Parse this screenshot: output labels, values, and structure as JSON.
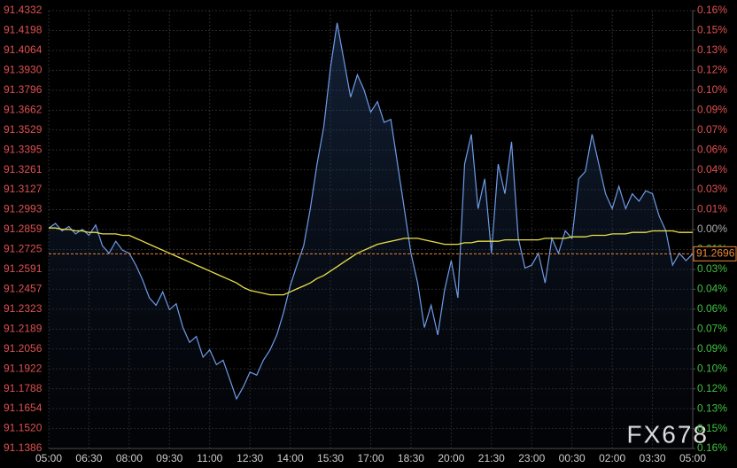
{
  "chart_data": {
    "type": "line",
    "x": [
      "05:00",
      "05:15",
      "05:30",
      "05:45",
      "06:00",
      "06:15",
      "06:30",
      "06:45",
      "07:00",
      "07:15",
      "07:30",
      "07:45",
      "08:00",
      "08:15",
      "08:30",
      "08:45",
      "09:00",
      "09:15",
      "09:30",
      "09:45",
      "10:00",
      "10:15",
      "10:30",
      "10:45",
      "11:00",
      "11:15",
      "11:30",
      "11:45",
      "12:00",
      "12:15",
      "12:30",
      "12:45",
      "13:00",
      "13:15",
      "13:30",
      "13:45",
      "14:00",
      "14:15",
      "14:30",
      "14:45",
      "15:00",
      "15:15",
      "15:30",
      "15:45",
      "16:00",
      "16:15",
      "16:30",
      "16:45",
      "17:00",
      "17:15",
      "17:30",
      "17:45",
      "18:00",
      "18:15",
      "18:30",
      "18:45",
      "19:00",
      "19:15",
      "19:30",
      "19:45",
      "20:00",
      "20:15",
      "20:30",
      "20:45",
      "21:00",
      "21:15",
      "21:30",
      "21:45",
      "22:00",
      "22:15",
      "22:30",
      "22:45",
      "23:00",
      "23:15",
      "23:30",
      "23:45",
      "00:00",
      "00:15",
      "00:30",
      "00:45",
      "01:00",
      "01:15",
      "01:30",
      "01:45",
      "02:00",
      "02:15",
      "02:30",
      "02:45",
      "03:00",
      "03:15",
      "03:30",
      "03:45",
      "04:00",
      "04:15",
      "04:30",
      "04:45",
      "05:00"
    ],
    "series": [
      {
        "color": "#6f9be8",
        "values": [
          91.287,
          91.29,
          91.285,
          91.288,
          91.283,
          91.286,
          91.282,
          91.289,
          91.275,
          91.27,
          91.278,
          91.272,
          91.27,
          91.262,
          91.252,
          91.24,
          91.235,
          91.244,
          91.232,
          91.236,
          91.22,
          91.21,
          91.214,
          91.2,
          91.205,
          91.195,
          91.198,
          91.185,
          91.172,
          91.18,
          91.19,
          91.188,
          91.198,
          91.205,
          91.215,
          91.23,
          91.248,
          91.262,
          91.275,
          91.3,
          91.33,
          91.355,
          91.395,
          91.425,
          91.4,
          91.375,
          91.39,
          91.38,
          91.365,
          91.372,
          91.358,
          91.36,
          91.33,
          91.3,
          91.27,
          91.25,
          91.22,
          91.235,
          91.215,
          91.245,
          91.265,
          91.24,
          91.33,
          91.35,
          91.3,
          91.32,
          91.27,
          91.33,
          91.31,
          91.345,
          91.28,
          91.26,
          91.262,
          91.27,
          91.25,
          91.28,
          91.27,
          91.285,
          91.28,
          91.32,
          91.325,
          91.35,
          91.33,
          91.31,
          91.3,
          91.315,
          91.3,
          91.31,
          91.305,
          91.312,
          91.31,
          91.295,
          91.285,
          91.262,
          91.27,
          91.265,
          91.2696
        ]
      },
      {
        "color": "#e8e04a",
        "values": [
          91.287,
          91.287,
          91.286,
          91.286,
          91.285,
          91.285,
          91.284,
          91.284,
          91.283,
          91.283,
          91.283,
          91.282,
          91.282,
          91.28,
          91.278,
          91.276,
          91.274,
          91.272,
          91.27,
          91.268,
          91.266,
          91.264,
          91.262,
          91.26,
          91.258,
          91.256,
          91.254,
          91.252,
          91.25,
          91.247,
          91.245,
          91.244,
          91.243,
          91.242,
          91.242,
          91.242,
          91.244,
          91.246,
          91.248,
          91.25,
          91.253,
          91.255,
          91.258,
          91.261,
          91.264,
          91.267,
          91.27,
          91.272,
          91.274,
          91.276,
          91.277,
          91.278,
          91.279,
          91.28,
          91.28,
          91.28,
          91.279,
          91.278,
          91.277,
          91.276,
          91.276,
          91.276,
          91.277,
          91.277,
          91.278,
          91.278,
          91.278,
          91.278,
          91.279,
          91.279,
          91.279,
          91.279,
          91.279,
          91.279,
          91.28,
          91.28,
          91.28,
          91.28,
          91.281,
          91.281,
          91.281,
          91.282,
          91.282,
          91.282,
          91.283,
          91.283,
          91.283,
          91.284,
          91.284,
          91.284,
          91.285,
          91.285,
          91.285,
          91.285,
          91.284,
          91.284,
          91.284
        ]
      }
    ],
    "xticks": [
      "05:00",
      "06:30",
      "08:00",
      "09:30",
      "11:00",
      "12:30",
      "14:00",
      "15:30",
      "17:00",
      "18:30",
      "20:00",
      "21:30",
      "23:00",
      "00:30",
      "02:00",
      "03:30",
      "05:00"
    ],
    "ylim": [
      91.1386,
      91.4332
    ],
    "yticks": [
      91.4332,
      91.4198,
      91.4064,
      {
        "value": 91.393,
        "label": "91.3930"
      },
      91.3796,
      91.3662,
      91.3529,
      91.3395,
      91.3261,
      91.3127,
      91.2993,
      91.2859,
      91.2725,
      91.2591,
      91.2457,
      91.2323,
      91.2189,
      91.2056,
      91.1922,
      91.1788,
      91.1654,
      {
        "value": 91.152,
        "label": "91.1520"
      },
      91.1386
    ],
    "y2lim": [
      -0.1614,
      0.1614
    ],
    "y2ticks": [
      {
        "value": 0.1614,
        "label": "0.16%"
      },
      {
        "value": 0.1468,
        "label": "0.15%"
      },
      {
        "value": 0.1321,
        "label": "0.13%"
      },
      {
        "value": 0.1174,
        "label": "0.12%"
      },
      {
        "value": 0.1027,
        "label": "0.10%"
      },
      {
        "value": 0.0881,
        "label": "0.09%"
      },
      {
        "value": 0.0734,
        "label": "0.07%"
      },
      {
        "value": 0.0587,
        "label": "0.06%"
      },
      {
        "value": 0.044,
        "label": "0.04%"
      },
      {
        "value": 0.0294,
        "label": "0.03%"
      },
      {
        "value": 0.0147,
        "label": "0.01%"
      },
      {
        "value": 0,
        "label": "0.00%"
      },
      {
        "value": -0.0147,
        "label": "0.01%"
      },
      {
        "value": -0.0294,
        "label": "0.03%"
      },
      {
        "value": -0.044,
        "label": "0.04%"
      },
      {
        "value": -0.0587,
        "label": "0.06%"
      },
      {
        "value": -0.0734,
        "label": "0.07%"
      },
      {
        "value": -0.0881,
        "label": "0.09%"
      },
      {
        "value": -0.1027,
        "label": "0.10%"
      },
      {
        "value": -0.1174,
        "label": "0.12%"
      },
      {
        "value": -0.1321,
        "label": "0.13%"
      },
      {
        "value": -0.1468,
        "label": "0.15%"
      },
      {
        "value": -0.1614,
        "label": "0.16%"
      }
    ],
    "last_value": 91.2696,
    "last_color": "#e8883a",
    "grid": true,
    "watermark": "FX678"
  }
}
